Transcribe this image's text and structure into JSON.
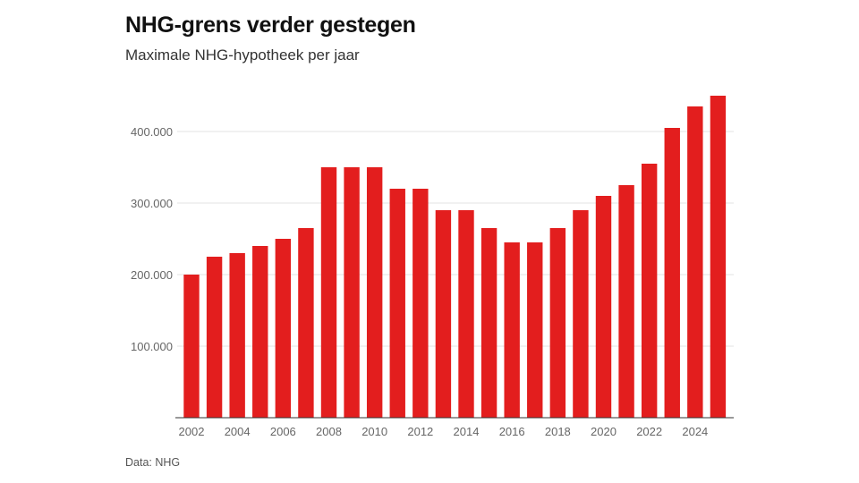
{
  "title": "NHG-grens verder gestegen",
  "subtitle": "Maximale NHG-hypotheek per jaar",
  "source": "Data: NHG",
  "colors": {
    "bar": "#e31e1e",
    "grid": "#e3e3e3",
    "axis": "#333333",
    "tick_text": "#666666"
  },
  "chart_data": {
    "type": "bar",
    "title": "NHG-grens verder gestegen",
    "subtitle": "Maximale NHG-hypotheek per jaar",
    "xlabel": "",
    "ylabel": "",
    "ylim": [
      0,
      500000
    ],
    "grid": true,
    "categories": [
      2002,
      2003,
      2004,
      2005,
      2006,
      2007,
      2008,
      2009,
      2010,
      2011,
      2012,
      2013,
      2014,
      2015,
      2016,
      2017,
      2018,
      2019,
      2020,
      2021,
      2022,
      2023,
      2024,
      2025
    ],
    "values": [
      200000,
      225000,
      230000,
      240000,
      250000,
      265000,
      350000,
      350000,
      350000,
      320000,
      320000,
      290000,
      290000,
      265000,
      245000,
      245000,
      265000,
      290000,
      310000,
      325000,
      355000,
      405000,
      435000,
      450000
    ],
    "y_ticks": [
      100000,
      200000,
      300000,
      400000
    ],
    "y_tick_labels": [
      "100.000",
      "200.000",
      "300.000",
      "400.000"
    ],
    "x_tick_labels": [
      "2002",
      "2004",
      "2006",
      "2008",
      "2010",
      "2012",
      "2014",
      "2016",
      "2018",
      "2020",
      "2022",
      "2024"
    ]
  }
}
